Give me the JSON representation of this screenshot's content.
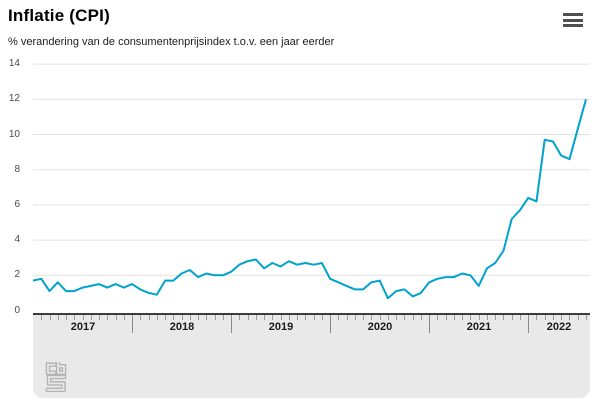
{
  "header": {
    "title": "Inflatie (CPI)",
    "subtitle": "% verandering van de consumentenprijsindex t.o.v. een jaar eerder",
    "menu_icon": "hamburger-menu-icon"
  },
  "colors": {
    "line": "#00a2ce",
    "grid": "#e2e2e2",
    "slider_bg": "#e9e9e9",
    "slider_border": "#3c3c3c",
    "month_tick": "#9a9a9a",
    "year_divider": "#8a8a8a",
    "y_label": "#4a4a4a",
    "year_label": "#1a1a1a",
    "logo": "#b4b4b4"
  },
  "footer": {
    "logo": "cbs-logo"
  },
  "chart_data": {
    "type": "line",
    "title": "Inflatie (CPI)",
    "subtitle": "% verandering van de consumentenprijsindex t.o.v. een jaar eerder",
    "unit": "%",
    "x_start": "2017-01",
    "x_end": "2022-08",
    "x_tick_labels": [
      "2017",
      "2018",
      "2019",
      "2020",
      "2021",
      "2022"
    ],
    "yticks": [
      0,
      2,
      4,
      6,
      8,
      10,
      12,
      14
    ],
    "ylim": [
      0,
      14
    ],
    "grid": "horizontal",
    "legend": "none",
    "series": [
      {
        "name": "Inflatie (CPI)",
        "values": [
          1.7,
          1.8,
          1.1,
          1.6,
          1.1,
          1.1,
          1.3,
          1.4,
          1.5,
          1.3,
          1.5,
          1.3,
          1.5,
          1.2,
          1.0,
          0.9,
          1.7,
          1.7,
          2.1,
          2.3,
          1.9,
          2.1,
          2.0,
          2.0,
          2.2,
          2.6,
          2.8,
          2.9,
          2.4,
          2.7,
          2.5,
          2.8,
          2.6,
          2.7,
          2.6,
          2.7,
          1.8,
          1.6,
          1.4,
          1.2,
          1.2,
          1.6,
          1.7,
          0.7,
          1.1,
          1.2,
          0.8,
          1.0,
          1.6,
          1.8,
          1.9,
          1.9,
          2.1,
          2.0,
          1.4,
          2.4,
          2.7,
          3.4,
          5.2,
          5.7,
          6.4,
          6.2,
          9.7,
          9.6,
          8.8,
          8.6,
          10.3,
          12.0
        ]
      }
    ]
  }
}
